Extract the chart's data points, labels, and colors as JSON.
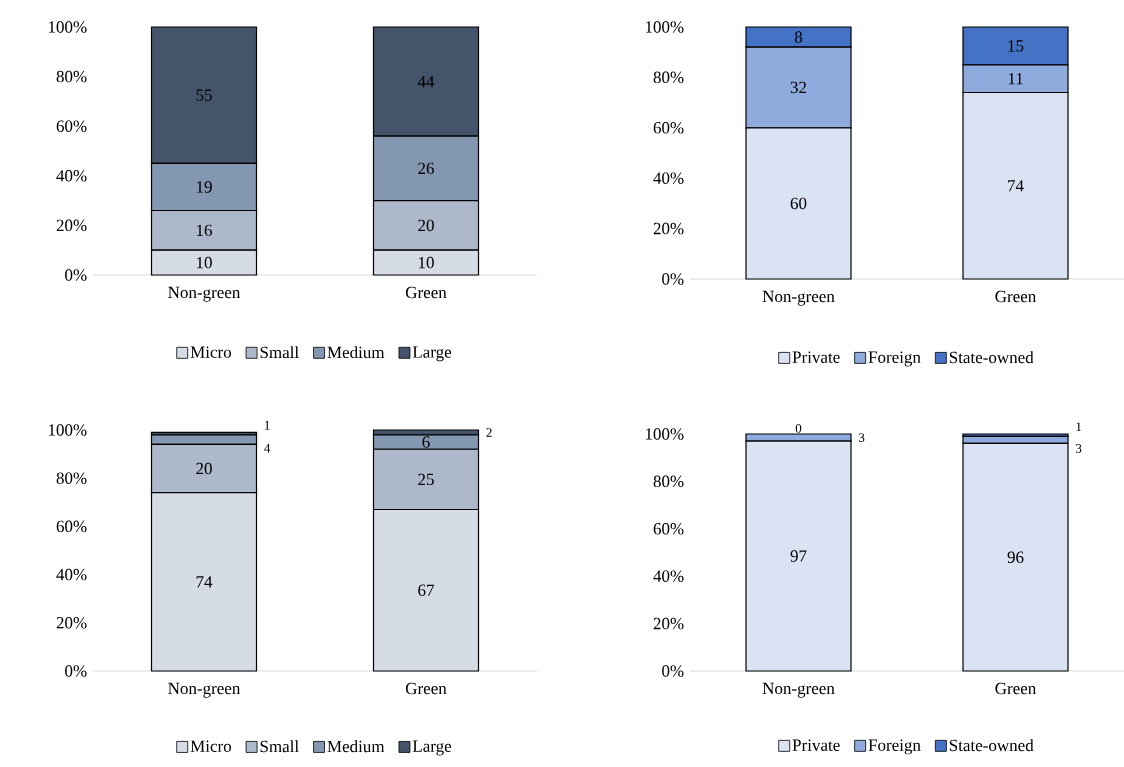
{
  "chart_data": [
    {
      "type": "bar",
      "stacked": true,
      "categories": [
        "Non-green",
        "Green"
      ],
      "ylim": [
        0,
        100
      ],
      "yticks": [
        {
          "value": 0,
          "label": "0%"
        },
        {
          "value": 20,
          "label": "20%"
        },
        {
          "value": 40,
          "label": "40%"
        },
        {
          "value": 60,
          "label": "60%"
        },
        {
          "value": 80,
          "label": "80%"
        },
        {
          "value": 100,
          "label": "100%"
        }
      ],
      "grid": false,
      "legend": "bottom",
      "data_labels": true,
      "series": [
        {
          "name": "Micro",
          "color": "#d6dce5",
          "values": [
            10,
            10
          ]
        },
        {
          "name": "Small",
          "color": "#adb9ca",
          "values": [
            16,
            20
          ]
        },
        {
          "name": "Medium",
          "color": "#8497b0",
          "values": [
            19,
            26
          ]
        },
        {
          "name": "Large",
          "color": "#44546a",
          "values": [
            55,
            44
          ]
        }
      ]
    },
    {
      "type": "bar",
      "stacked": true,
      "categories": [
        "Non-green",
        "Green"
      ],
      "ylim": [
        0,
        100
      ],
      "yticks": [
        {
          "value": 0,
          "label": "0%"
        },
        {
          "value": 20,
          "label": "20%"
        },
        {
          "value": 40,
          "label": "40%"
        },
        {
          "value": 60,
          "label": "60%"
        },
        {
          "value": 80,
          "label": "80%"
        },
        {
          "value": 100,
          "label": "100%"
        }
      ],
      "grid": false,
      "legend": "bottom",
      "data_labels": true,
      "series": [
        {
          "name": "Private",
          "color": "#dae3f3",
          "values": [
            60,
            74
          ]
        },
        {
          "name": "Foreign",
          "color": "#8faadc",
          "values": [
            32,
            11
          ]
        },
        {
          "name": "State-owned",
          "color": "#4472c4",
          "values": [
            8,
            15
          ]
        }
      ]
    },
    {
      "type": "bar",
      "stacked": true,
      "categories": [
        "Non-green",
        "Green"
      ],
      "ylim": [
        0,
        100
      ],
      "yticks": [
        {
          "value": 0,
          "label": "0%"
        },
        {
          "value": 20,
          "label": "20%"
        },
        {
          "value": 40,
          "label": "40%"
        },
        {
          "value": 60,
          "label": "60%"
        },
        {
          "value": 80,
          "label": "80%"
        },
        {
          "value": 100,
          "label": "100%"
        }
      ],
      "grid": false,
      "legend": "bottom",
      "data_labels": true,
      "series": [
        {
          "name": "Micro",
          "color": "#d6dce5",
          "values": [
            74,
            67
          ]
        },
        {
          "name": "Small",
          "color": "#adb9ca",
          "values": [
            20,
            25
          ]
        },
        {
          "name": "Medium",
          "color": "#8497b0",
          "values": [
            4,
            6
          ]
        },
        {
          "name": "Large",
          "color": "#44546a",
          "values": [
            1,
            2
          ]
        }
      ]
    },
    {
      "type": "bar",
      "stacked": true,
      "categories": [
        "Non-green",
        "Green"
      ],
      "ylim": [
        0,
        100
      ],
      "yticks": [
        {
          "value": 0,
          "label": "0%"
        },
        {
          "value": 20,
          "label": "20%"
        },
        {
          "value": 40,
          "label": "40%"
        },
        {
          "value": 60,
          "label": "60%"
        },
        {
          "value": 80,
          "label": "80%"
        },
        {
          "value": 100,
          "label": "100%"
        }
      ],
      "grid": false,
      "legend": "bottom",
      "data_labels": true,
      "series": [
        {
          "name": "Private",
          "color": "#dae3f3",
          "values": [
            97,
            96
          ]
        },
        {
          "name": "Foreign",
          "color": "#8faadc",
          "values": [
            3,
            3
          ]
        },
        {
          "name": "State-owned",
          "color": "#4472c4",
          "values": [
            0,
            1
          ]
        }
      ]
    }
  ]
}
